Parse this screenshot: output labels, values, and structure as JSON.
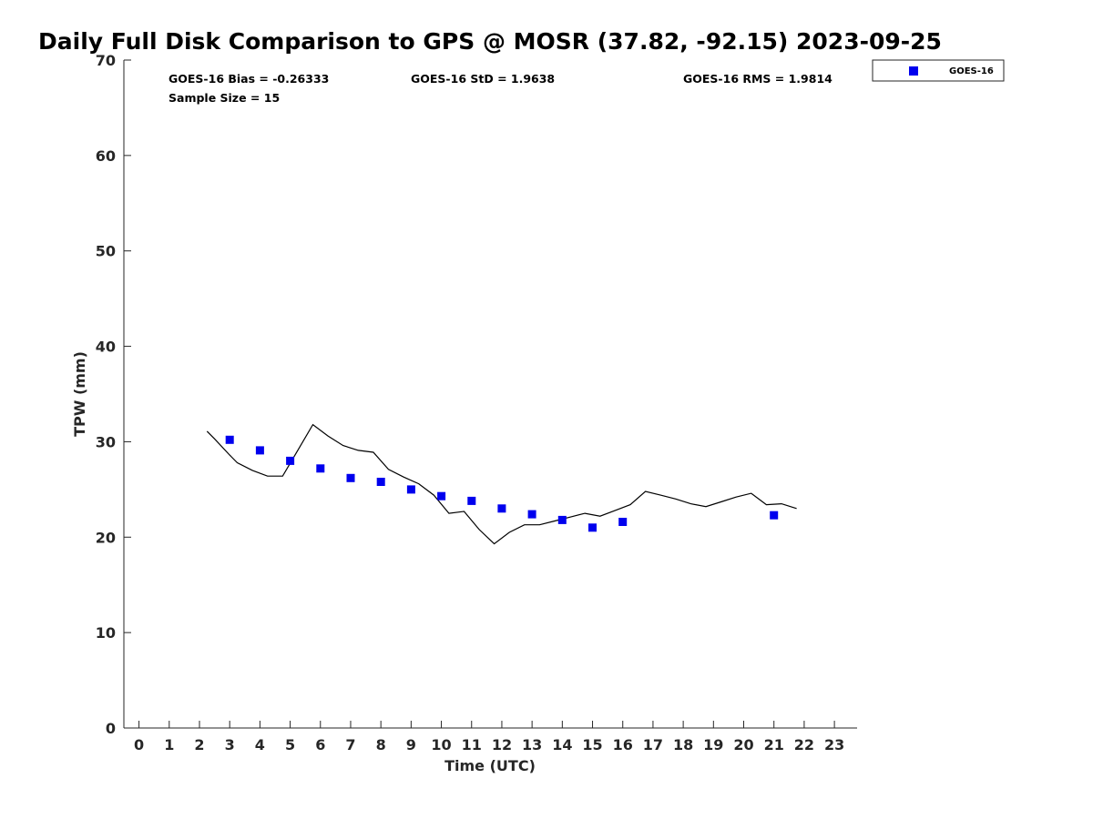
{
  "chart_data": {
    "type": "scatter",
    "title": "Daily Full Disk Comparison to GPS @ MOSR (37.82, -92.15) 2023-09-25",
    "xlabel": "Time (UTC)",
    "ylabel": "TPW (mm)",
    "xlim": [
      -0.5,
      23.75
    ],
    "ylim": [
      0,
      70
    ],
    "x_ticks": [
      "0",
      "1",
      "2",
      "3",
      "4",
      "5",
      "6",
      "7",
      "8",
      "9",
      "10",
      "11",
      "12",
      "13",
      "14",
      "15",
      "16",
      "17",
      "18",
      "19",
      "20",
      "21",
      "22",
      "23"
    ],
    "y_ticks": [
      "0",
      "10",
      "20",
      "30",
      "40",
      "50",
      "60",
      "70"
    ],
    "grid": false,
    "legend": {
      "position": "top-right",
      "entries": [
        "GOES-16"
      ]
    },
    "stats": {
      "bias": "GOES-16 Bias = -0.26333",
      "std": "GOES-16 StD = 1.9638",
      "rms": "GOES-16 RMS = 1.9814",
      "sample_size": "Sample Size = 15"
    },
    "series": [
      {
        "name": "GOES-16",
        "kind": "scatter",
        "color": "#0000ee",
        "marker": "square",
        "x": [
          3,
          4,
          5,
          6,
          7,
          8,
          9,
          10,
          11,
          12,
          13,
          14,
          15,
          16,
          21
        ],
        "y": [
          30.2,
          29.1,
          28.0,
          27.2,
          26.2,
          25.8,
          25.0,
          24.3,
          23.8,
          23.0,
          22.4,
          21.8,
          21.0,
          21.6,
          22.3
        ]
      },
      {
        "kind": "line",
        "color": "#000000",
        "x": [
          2.25,
          2.5,
          3.0,
          3.25,
          3.75,
          4.25,
          4.75,
          5.25,
          5.75,
          6.25,
          6.75,
          7.25,
          7.75,
          8.25,
          8.75,
          9.25,
          9.75,
          10.25,
          10.75,
          11.25,
          11.75,
          12.25,
          12.75,
          13.25,
          13.75,
          14.25,
          14.75,
          15.25,
          15.75,
          16.25,
          16.75,
          17.25,
          17.75,
          18.25,
          18.75,
          19.25,
          19.75,
          20.25,
          20.75,
          21.25,
          21.75
        ],
        "y": [
          31.1,
          30.3,
          28.6,
          27.8,
          27.0,
          26.4,
          26.4,
          29.1,
          31.8,
          30.6,
          29.6,
          29.1,
          28.9,
          27.1,
          26.3,
          25.6,
          24.4,
          22.5,
          22.7,
          20.8,
          19.3,
          20.5,
          21.3,
          21.3,
          21.7,
          22.1,
          22.5,
          22.2,
          22.8,
          23.4,
          24.8,
          24.4,
          24.0,
          23.5,
          23.2,
          23.7,
          24.2,
          24.6,
          23.4,
          23.5,
          23.0
        ]
      }
    ]
  }
}
